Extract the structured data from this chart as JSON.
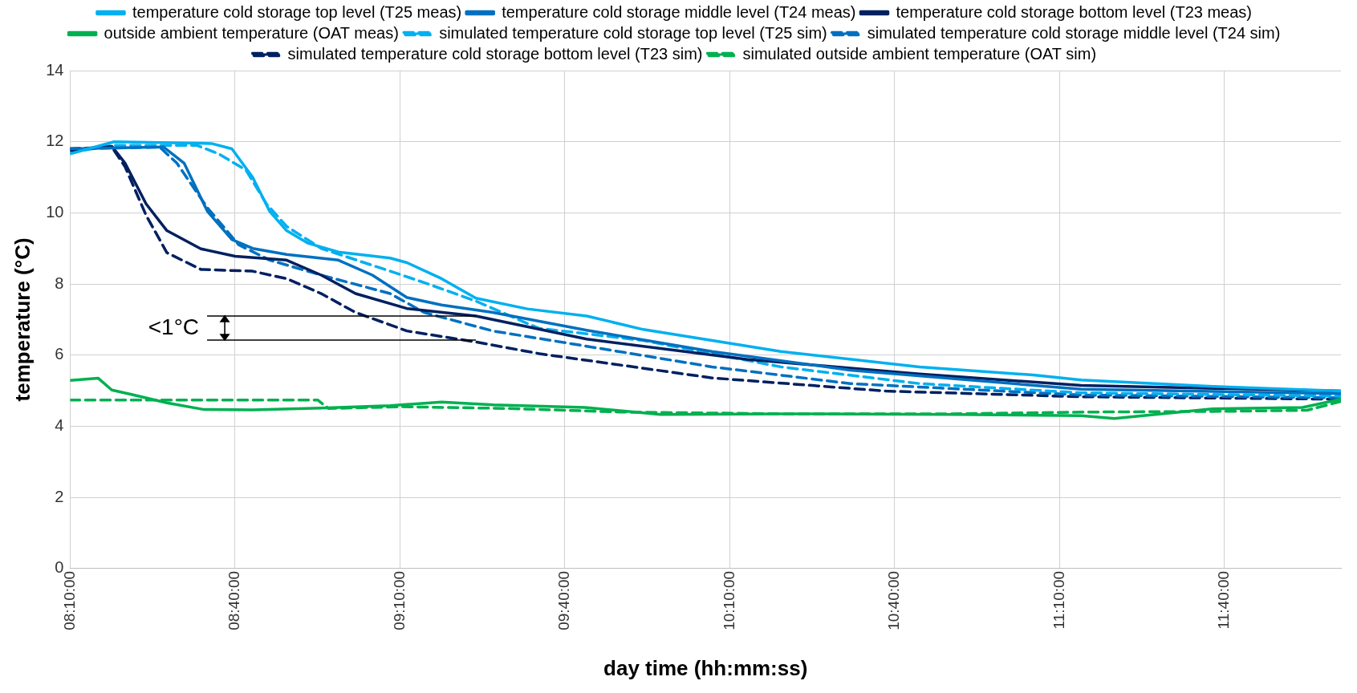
{
  "chart_data": {
    "type": "line",
    "xlabel": "day time (hh:mm:ss)",
    "ylabel": "temperature (°C)",
    "xlim": [
      8.1667,
      12.02
    ],
    "xticks": [
      {
        "value": 8.1667,
        "label": "08:10:00"
      },
      {
        "value": 8.6667,
        "label": "08:40:00"
      },
      {
        "value": 9.1667,
        "label": "09:10:00"
      },
      {
        "value": 9.6667,
        "label": "09:40:00"
      },
      {
        "value": 10.1667,
        "label": "10:10:00"
      },
      {
        "value": 10.6667,
        "label": "10:40:00"
      },
      {
        "value": 11.1667,
        "label": "11:10:00"
      },
      {
        "value": 11.6667,
        "label": "11:40:00"
      }
    ],
    "ylim": [
      0,
      14
    ],
    "yticks": [
      0,
      2,
      4,
      6,
      8,
      10,
      12,
      14
    ],
    "grid": true,
    "legend": "top",
    "marker": "none",
    "annotations": [
      {
        "text": "<1°C",
        "x": 9.397,
        "y": 7.1
      }
    ],
    "series": [
      {
        "name": "temperature cold storage top level (T25 meas)",
        "color": "#00b0f0",
        "line_style": "solid",
        "x": [
          8.1667,
          8.3,
          8.595,
          8.657,
          8.72,
          8.772,
          8.823,
          8.887,
          8.98,
          9.137,
          9.188,
          9.293,
          9.397,
          9.553,
          9.733,
          9.905,
          10.322,
          10.742,
          11.087,
          11.232,
          11.63,
          12.02
        ],
        "values": [
          11.66,
          12.0,
          11.95,
          11.8,
          11.0,
          10.04,
          9.5,
          9.15,
          8.9,
          8.73,
          8.6,
          8.15,
          7.6,
          7.3,
          7.1,
          6.72,
          6.1,
          5.67,
          5.44,
          5.3,
          5.12,
          4.99
        ]
      },
      {
        "name": "temperature cold storage middle level (T24 meas)",
        "color": "#0070c0",
        "line_style": "solid",
        "x": [
          8.1667,
          8.45,
          8.512,
          8.583,
          8.657,
          8.72,
          8.823,
          8.98,
          9.083,
          9.188,
          9.293,
          9.448,
          9.733,
          10.113,
          10.532,
          11.232,
          12.02
        ],
        "values": [
          11.8,
          11.85,
          11.4,
          10.04,
          9.25,
          9.0,
          8.83,
          8.67,
          8.25,
          7.62,
          7.41,
          7.2,
          6.7,
          6.1,
          5.58,
          5.04,
          4.92
        ]
      },
      {
        "name": "temperature cold storage bottom level (T23 meas)",
        "color": "#002060",
        "line_style": "solid",
        "x": [
          8.1667,
          8.293,
          8.333,
          8.397,
          8.46,
          8.563,
          8.667,
          8.823,
          8.928,
          9.032,
          9.188,
          9.397,
          9.733,
          10.218,
          10.742,
          11.232,
          12.02
        ],
        "values": [
          11.75,
          11.87,
          11.4,
          10.25,
          9.5,
          8.99,
          8.78,
          8.67,
          8.25,
          7.73,
          7.31,
          7.1,
          6.45,
          5.88,
          5.47,
          5.15,
          4.99
        ]
      },
      {
        "name": "outside ambient temperature (OAT meas)",
        "color": "#00b050",
        "line_style": "solid",
        "x": [
          8.1667,
          8.252,
          8.293,
          8.355,
          8.46,
          8.573,
          8.72,
          8.928,
          9.137,
          9.293,
          9.45,
          9.728,
          9.957,
          10.322,
          10.847,
          11.232,
          11.333,
          11.63,
          11.903,
          12.02
        ],
        "values": [
          5.29,
          5.35,
          5.02,
          4.89,
          4.66,
          4.47,
          4.46,
          4.51,
          4.58,
          4.68,
          4.6,
          4.53,
          4.33,
          4.35,
          4.33,
          4.3,
          4.22,
          4.49,
          4.53,
          4.76
        ]
      },
      {
        "name": "simulated temperature cold storage top level (T25 sim)",
        "color": "#00b0f0",
        "line_style": "dashed",
        "x": [
          8.1667,
          8.3,
          8.55,
          8.617,
          8.7,
          8.762,
          8.823,
          8.928,
          9.137,
          9.24,
          9.397,
          9.553,
          9.59,
          9.733,
          9.905,
          10.322,
          10.742,
          11.232,
          12.02
        ],
        "values": [
          11.7,
          11.9,
          11.9,
          11.66,
          11.2,
          10.25,
          9.62,
          9.0,
          8.36,
          8.04,
          7.52,
          6.89,
          6.75,
          6.6,
          6.41,
          5.67,
          5.2,
          4.94,
          4.85
        ]
      },
      {
        "name": "simulated temperature cold storage middle level (T24 sim)",
        "color": "#0070c0",
        "line_style": "dashed",
        "x": [
          8.1667,
          8.438,
          8.49,
          8.583,
          8.678,
          8.772,
          8.928,
          9.137,
          9.24,
          9.448,
          9.733,
          10.113,
          10.532,
          11.232,
          12.02
        ],
        "values": [
          11.8,
          11.85,
          11.4,
          10.14,
          9.1,
          8.67,
          8.25,
          7.73,
          7.2,
          6.68,
          6.25,
          5.67,
          5.2,
          4.88,
          4.8
        ]
      },
      {
        "name": "simulated temperature cold storage bottom level (T23 sim)",
        "color": "#002060",
        "line_style": "dashed",
        "x": [
          8.1667,
          8.293,
          8.333,
          8.397,
          8.46,
          8.563,
          8.72,
          8.823,
          8.928,
          9.032,
          9.188,
          9.397,
          9.59,
          10.113,
          10.64,
          11.232,
          12.02
        ],
        "values": [
          11.8,
          11.85,
          11.3,
          9.93,
          8.88,
          8.41,
          8.36,
          8.15,
          7.73,
          7.2,
          6.68,
          6.37,
          6.04,
          5.36,
          4.99,
          4.83,
          4.76
        ]
      },
      {
        "name": "simulated outside ambient temperature (OAT sim)",
        "color": "#00b050",
        "line_style": "dashed",
        "x": [
          8.1667,
          8.917,
          8.95,
          9.167,
          9.5,
          9.833,
          10.333,
          10.833,
          11.25,
          11.667,
          11.917,
          12.02
        ],
        "values": [
          4.74,
          4.74,
          4.5,
          4.55,
          4.5,
          4.4,
          4.35,
          4.35,
          4.4,
          4.42,
          4.45,
          4.7
        ]
      }
    ]
  }
}
